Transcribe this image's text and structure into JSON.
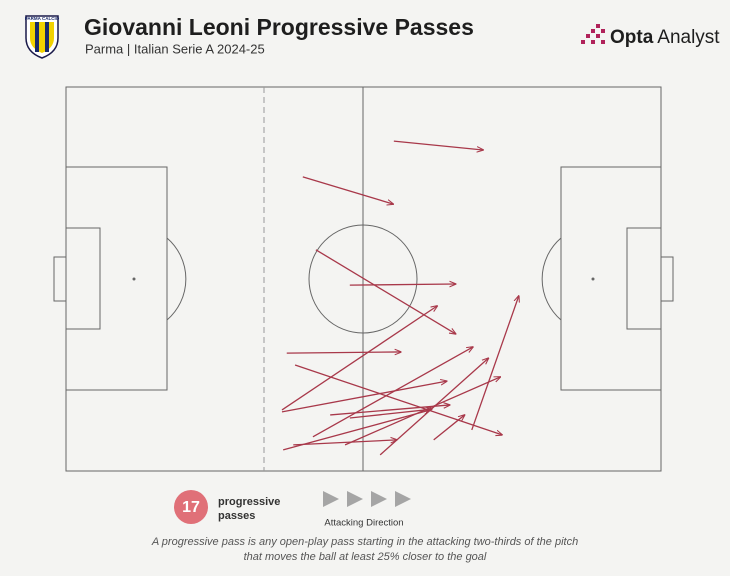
{
  "chart_data": {
    "type": "pass_map",
    "title": "Giovanni Leoni Progressive Passes",
    "subtitle": "Parma | Italian Serie A 2024-25",
    "badge_text": "PARMA CALCIO",
    "brand_bold": "Opta",
    "brand_light": "Analyst",
    "pass_count": 17,
    "count_label": [
      "progressive",
      "passes"
    ],
    "direction_label": "Attacking Direction",
    "footnote": [
      "A progressive pass is any open-play pass starting in the attacking two-thirds of the pitch",
      "that moves the ball at least 25% closer to the goal"
    ],
    "color": "#a8384a",
    "xlim": [
      0,
      100
    ],
    "ylim": [
      0,
      100
    ],
    "passes": [
      {
        "x": 55.1,
        "y": 14.1,
        "end_x": 70.1,
        "end_y": 16.4
      },
      {
        "x": 39.8,
        "y": 23.4,
        "end_x": 55.0,
        "end_y": 30.5
      },
      {
        "x": 42.0,
        "y": 42.4,
        "end_x": 65.5,
        "end_y": 64.3
      },
      {
        "x": 47.7,
        "y": 51.6,
        "end_x": 65.5,
        "end_y": 51.3
      },
      {
        "x": 37.1,
        "y": 69.3,
        "end_x": 56.3,
        "end_y": 69.0
      },
      {
        "x": 38.5,
        "y": 72.4,
        "end_x": 73.3,
        "end_y": 90.6
      },
      {
        "x": 36.3,
        "y": 84.1,
        "end_x": 62.4,
        "end_y": 57.0
      },
      {
        "x": 36.3,
        "y": 84.6,
        "end_x": 64.0,
        "end_y": 76.6
      },
      {
        "x": 41.5,
        "y": 91.1,
        "end_x": 68.4,
        "end_y": 67.7
      },
      {
        "x": 44.4,
        "y": 85.4,
        "end_x": 64.5,
        "end_y": 82.8
      },
      {
        "x": 36.5,
        "y": 94.5,
        "end_x": 61.2,
        "end_y": 84.1
      },
      {
        "x": 46.9,
        "y": 93.2,
        "end_x": 73.0,
        "end_y": 75.5
      },
      {
        "x": 38.2,
        "y": 93.2,
        "end_x": 55.6,
        "end_y": 91.9
      },
      {
        "x": 52.8,
        "y": 95.8,
        "end_x": 71.0,
        "end_y": 70.6
      },
      {
        "x": 61.8,
        "y": 91.9,
        "end_x": 67.0,
        "end_y": 85.4
      },
      {
        "x": 68.2,
        "y": 89.3,
        "end_x": 76.1,
        "end_y": 54.4
      },
      {
        "x": 47.7,
        "y": 86.2,
        "end_x": 61.5,
        "end_y": 83.9
      }
    ]
  }
}
